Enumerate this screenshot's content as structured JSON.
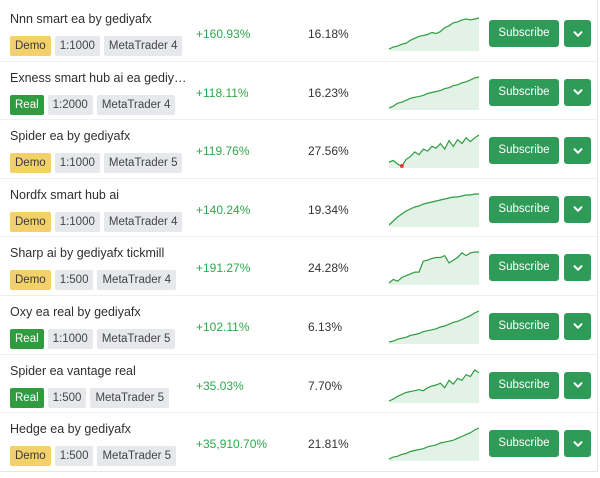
{
  "colors": {
    "gain_green": "#2fa84a",
    "button_green": "#2e9c58",
    "demo_badge": "#f2d16b",
    "real_badge": "#2e9c3f",
    "chart_line": "#2e9c3f",
    "chart_fill": "#e3f2e7",
    "loss_marker": "#e53935"
  },
  "icons": {
    "dropdown": "chevron-down-icon"
  },
  "strategies": [
    {
      "name": "Nnn smart ea by gediyafx",
      "account_type": "Demo",
      "leverage": "1:1000",
      "platform": "MetaTrader 4",
      "gain": "+160.93%",
      "drawdown": "16.18%",
      "subscribe_label": "Subscribe",
      "equity_curve": [
        0,
        2,
        3,
        5,
        6,
        9,
        11,
        13,
        14,
        15,
        17,
        16,
        18,
        22,
        24,
        27,
        28,
        30,
        31,
        30,
        31,
        32
      ]
    },
    {
      "name": "Exness smart hub ai ea gediya…",
      "account_type": "Real",
      "leverage": "1:2000",
      "platform": "MetaTrader 4",
      "gain": "+118.11%",
      "drawdown": "16.23%",
      "subscribe_label": "Subscribe",
      "equity_curve": [
        0,
        2,
        5,
        6,
        8,
        10,
        11,
        12,
        13,
        15,
        16,
        17,
        18,
        20,
        21,
        23,
        24,
        26,
        27,
        29,
        31,
        32
      ]
    },
    {
      "name": "Spider ea by gediyafx",
      "account_type": "Demo",
      "leverage": "1:1000",
      "platform": "MetaTrader 5",
      "gain": "+119.76%",
      "drawdown": "27.56%",
      "subscribe_label": "Subscribe",
      "equity_curve": [
        4,
        6,
        2,
        0,
        7,
        10,
        15,
        12,
        18,
        16,
        21,
        19,
        24,
        18,
        27,
        21,
        28,
        24,
        30,
        26,
        30,
        33
      ]
    },
    {
      "name": "Nordfx smart hub ai",
      "account_type": "Demo",
      "leverage": "1:1000",
      "platform": "MetaTrader 4",
      "gain": "+140.24%",
      "drawdown": "19.34%",
      "subscribe_label": "Subscribe",
      "equity_curve": [
        0,
        4,
        8,
        11,
        14,
        16,
        18,
        19,
        21,
        22,
        23,
        24,
        25,
        26,
        27,
        28,
        28,
        29,
        30,
        30,
        31,
        31
      ]
    },
    {
      "name": "Sharp ai by gediyafx tickmill",
      "account_type": "Demo",
      "leverage": "1:500",
      "platform": "MetaTrader 4",
      "gain": "+191.27%",
      "drawdown": "24.28%",
      "subscribe_label": "Subscribe",
      "equity_curve": [
        0,
        4,
        2,
        6,
        8,
        10,
        12,
        12,
        24,
        25,
        27,
        28,
        28,
        30,
        22,
        25,
        28,
        33,
        30,
        33,
        34,
        34
      ]
    },
    {
      "name": "Oxy ea real by gediyafx",
      "account_type": "Real",
      "leverage": "1:1000",
      "platform": "MetaTrader 5",
      "gain": "+102.11%",
      "drawdown": "6.13%",
      "subscribe_label": "Subscribe",
      "equity_curve": [
        0,
        1,
        3,
        4,
        5,
        7,
        8,
        9,
        11,
        12,
        13,
        14,
        16,
        17,
        19,
        21,
        22,
        24,
        26,
        28,
        31,
        33
      ]
    },
    {
      "name": "Spider ea vantage real",
      "account_type": "Real",
      "leverage": "1:500",
      "platform": "MetaTrader 5",
      "gain": "+35.03%",
      "drawdown": "7.70%",
      "subscribe_label": "Subscribe",
      "equity_curve": [
        0,
        2,
        5,
        7,
        9,
        10,
        11,
        12,
        11,
        14,
        16,
        17,
        19,
        14,
        22,
        18,
        24,
        22,
        28,
        26,
        33,
        30
      ]
    },
    {
      "name": "Hedge ea by gediyafx",
      "account_type": "Demo",
      "leverage": "1:500",
      "platform": "MetaTrader 5",
      "gain": "+35,910.70%",
      "drawdown": "21.81%",
      "subscribe_label": "Subscribe",
      "equity_curve": [
        0,
        2,
        3,
        5,
        6,
        8,
        9,
        10,
        11,
        13,
        14,
        15,
        17,
        18,
        19,
        20,
        22,
        24,
        26,
        28,
        31,
        33
      ]
    }
  ]
}
